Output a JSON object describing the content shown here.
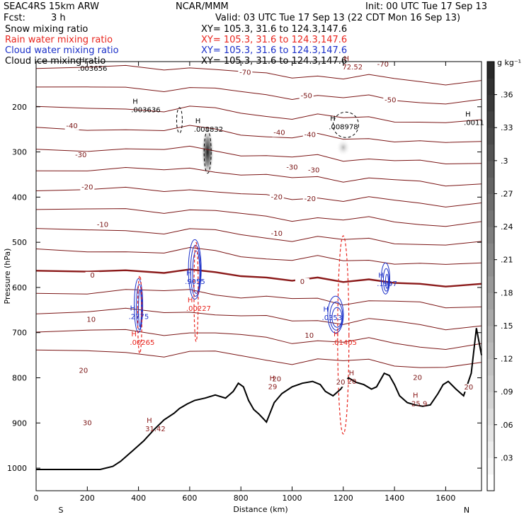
{
  "header": {
    "model": "SEAC4RS 15km ARW",
    "center": "NCAR/MMM",
    "init": "Init: 00 UTC Tue 17 Sep 13",
    "fcst_label": "Fcst:",
    "fcst_value": "3 h",
    "valid": "Valid: 03 UTC Tue 17 Sep 13 (22 CDT Mon 16 Sep 13)",
    "fields": [
      {
        "name": "Snow mixing ratio",
        "xy": "XY= 105.3, 31.6 to 124.3,147.6",
        "color": "#000000"
      },
      {
        "name": "Rain water mixing ratio",
        "xy": "XY= 105.3, 31.6 to 124.3,147.6",
        "color": "#e8251e"
      },
      {
        "name": "Cloud water mixing ratio",
        "xy": "XY= 105.3, 31.6 to 124.3,147.6",
        "color": "#1a2fc8"
      },
      {
        "name": "Cloud ice mixing ratio",
        "xy": "XY= 105.3, 31.6 to 124.3,147.6",
        "color": "#000000"
      }
    ]
  },
  "chart_data": {
    "type": "cross-section",
    "xlabel": "Distance (km)",
    "ylabel": "Pressure (hPa)",
    "xlim": [
      0,
      1740
    ],
    "ylim": [
      100,
      1050
    ],
    "x_ticks": [
      0,
      200,
      400,
      600,
      800,
      1000,
      1200,
      1400,
      1600
    ],
    "y_ticks": [
      200,
      300,
      400,
      500,
      600,
      700,
      800,
      900,
      1000
    ],
    "endpoint_labels": {
      "left": "S",
      "right": "N"
    },
    "colorbar": {
      "unit": "g kg⁻¹",
      "ticks": [
        ".03",
        ".06",
        ".09",
        ".12",
        ".15",
        ".18",
        ".21",
        ".24",
        ".27",
        ".3",
        ".33",
        ".36"
      ],
      "tick_values": [
        0.03,
        0.06,
        0.09,
        0.12,
        0.15,
        0.18,
        0.21,
        0.24,
        0.27,
        0.3,
        0.33,
        0.36
      ],
      "range": [
        0,
        0.39
      ]
    },
    "temperature_labels": [
      {
        "text": "-70",
        "x": 817,
        "p": 129
      },
      {
        "text": "-70",
        "x": 1355,
        "p": 111
      },
      {
        "text": "-50",
        "x": 1056,
        "p": 181
      },
      {
        "text": "-50",
        "x": 1384,
        "p": 190
      },
      {
        "text": "-40",
        "x": 140,
        "p": 247
      },
      {
        "text": "-40",
        "x": 950,
        "p": 262
      },
      {
        "text": "-40",
        "x": 1070,
        "p": 267
      },
      {
        "text": "-30",
        "x": 175,
        "p": 312
      },
      {
        "text": "-30",
        "x": 1000,
        "p": 339
      },
      {
        "text": "-30",
        "x": 1085,
        "p": 345
      },
      {
        "text": "-20",
        "x": 200,
        "p": 383
      },
      {
        "text": "-20",
        "x": 940,
        "p": 405
      },
      {
        "text": "-20",
        "x": 1070,
        "p": 409
      },
      {
        "text": "-10",
        "x": 260,
        "p": 466
      },
      {
        "text": "-10",
        "x": 940,
        "p": 486
      },
      {
        "text": "0",
        "x": 220,
        "p": 578
      },
      {
        "text": "0",
        "x": 1040,
        "p": 592
      },
      {
        "text": "10",
        "x": 215,
        "p": 676
      },
      {
        "text": "10",
        "x": 1067,
        "p": 711
      },
      {
        "text": "20",
        "x": 185,
        "p": 789
      },
      {
        "text": "20",
        "x": 940,
        "p": 808
      },
      {
        "text": "20",
        "x": 1190,
        "p": 815
      },
      {
        "text": "20",
        "x": 1490,
        "p": 805
      },
      {
        "text": "20",
        "x": 1690,
        "p": 826
      },
      {
        "text": "30",
        "x": 200,
        "p": 905
      }
    ],
    "max_labels": [
      {
        "text": ".003636",
        "x": 410,
        "p": 212,
        "color": "#000000"
      },
      {
        "text": ".008832",
        "x": 655,
        "p": 255,
        "color": "#000000"
      },
      {
        "text": ".008978",
        "x": 1182,
        "p": 250,
        "color": "#000000"
      },
      {
        "text": ".0011",
        "x": 1710,
        "p": 240,
        "color": "#000000"
      },
      {
        "text": ".003656",
        "x": 202,
        "p": 120,
        "color": "#000000"
      },
      {
        "text": ".2775",
        "x": 400,
        "p": 670,
        "color": "#1a2fc8"
      },
      {
        "text": ".9055",
        "x": 620,
        "p": 592,
        "color": "#1a2fc8"
      },
      {
        "text": ".0353",
        "x": 1155,
        "p": 672,
        "color": "#1a2fc8"
      },
      {
        "text": ".1997",
        "x": 1370,
        "p": 597,
        "color": "#1a2fc8"
      },
      {
        "text": ".00265",
        "x": 405,
        "p": 727,
        "color": "#e8251e"
      },
      {
        "text": ".00227",
        "x": 625,
        "p": 652,
        "color": "#e8251e"
      },
      {
        "text": ".01405",
        "x": 1195,
        "p": 727,
        "color": "#e8251e"
      },
      {
        "text": "31.42",
        "x": 465,
        "p": 918,
        "color": "#8b1a1a"
      },
      {
        "text": "25.9",
        "x": 1505,
        "p": 863,
        "color": "#8b1a1a"
      },
      {
        "text": "29",
        "x": 945,
        "p": 825,
        "color": "#8b1a1a"
      },
      {
        "text": "20",
        "x": 1255,
        "p": 813,
        "color": "#8b1a1a"
      },
      {
        "text": "72.52",
        "x": 1235,
        "p": 117,
        "color": "#8b1a1a"
      }
    ],
    "terrain": [
      [
        0,
        1003
      ],
      [
        250,
        1003
      ],
      [
        300,
        996
      ],
      [
        330,
        985
      ],
      [
        380,
        960
      ],
      [
        420,
        940
      ],
      [
        460,
        915
      ],
      [
        500,
        893
      ],
      [
        540,
        878
      ],
      [
        560,
        868
      ],
      [
        590,
        858
      ],
      [
        620,
        850
      ],
      [
        660,
        845
      ],
      [
        700,
        838
      ],
      [
        740,
        845
      ],
      [
        770,
        830
      ],
      [
        790,
        812
      ],
      [
        810,
        820
      ],
      [
        830,
        850
      ],
      [
        850,
        870
      ],
      [
        870,
        880
      ],
      [
        900,
        898
      ],
      [
        930,
        855
      ],
      [
        960,
        835
      ],
      [
        1000,
        820
      ],
      [
        1040,
        812
      ],
      [
        1080,
        808
      ],
      [
        1110,
        815
      ],
      [
        1130,
        830
      ],
      [
        1160,
        840
      ],
      [
        1190,
        825
      ],
      [
        1220,
        800
      ],
      [
        1250,
        810
      ],
      [
        1280,
        815
      ],
      [
        1310,
        825
      ],
      [
        1330,
        820
      ],
      [
        1360,
        790
      ],
      [
        1380,
        795
      ],
      [
        1400,
        815
      ],
      [
        1420,
        840
      ],
      [
        1450,
        855
      ],
      [
        1480,
        860
      ],
      [
        1510,
        863
      ],
      [
        1540,
        860
      ],
      [
        1570,
        835
      ],
      [
        1590,
        815
      ],
      [
        1610,
        808
      ],
      [
        1640,
        825
      ],
      [
        1670,
        840
      ],
      [
        1700,
        790
      ],
      [
        1720,
        690
      ],
      [
        1740,
        750
      ]
    ],
    "freezing_level": [
      [
        0,
        563
      ],
      [
        200,
        565
      ],
      [
        350,
        562
      ],
      [
        500,
        568
      ],
      [
        600,
        560
      ],
      [
        700,
        566
      ],
      [
        800,
        575
      ],
      [
        900,
        578
      ],
      [
        1000,
        585
      ],
      [
        1100,
        578
      ],
      [
        1200,
        588
      ],
      [
        1300,
        582
      ],
      [
        1400,
        590
      ],
      [
        1500,
        592
      ],
      [
        1600,
        598
      ],
      [
        1740,
        592
      ]
    ],
    "snow_maxima": [
      {
        "x": 670,
        "p": 300,
        "value": 0.36
      },
      {
        "x": 1200,
        "p": 290,
        "value": 0.15
      }
    ]
  }
}
